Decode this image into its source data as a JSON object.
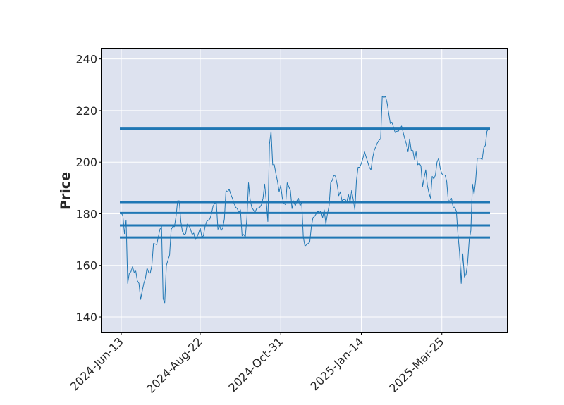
{
  "chart_data": {
    "type": "line",
    "title": "",
    "xlabel": "",
    "ylabel": "Price",
    "ylim": [
      134,
      244
    ],
    "grid": true,
    "colors": {
      "background": "#dde2ef",
      "line": "#1f77b4",
      "grid": "#ffffff",
      "frame": "#000000"
    },
    "x_ticks": [
      "2024-Jun-13",
      "2024-Aug-22",
      "2024-Oct-31",
      "2025-Jan-14",
      "2025-Mar-25"
    ],
    "x_tick_index": [
      0,
      49,
      99,
      149,
      199
    ],
    "y_ticks": [
      140,
      160,
      180,
      200,
      220,
      240
    ],
    "hlines": [
      213,
      184.5,
      180.3,
      175.5,
      170.8
    ],
    "series": [
      {
        "values": [
          180.2,
          179.3,
          172.3,
          177.5,
          153,
          157,
          157.5,
          159.5,
          157.3,
          157.8,
          154,
          153,
          146.8,
          150,
          153,
          155,
          159,
          157.3,
          157,
          160,
          168.5,
          168.3,
          168,
          171,
          174,
          175,
          147,
          145.5,
          160,
          162,
          164,
          174,
          175,
          175,
          179,
          185,
          185,
          177,
          173,
          172,
          172.3,
          176,
          175.5,
          174,
          172,
          172.5,
          170,
          171,
          172.5,
          174.5,
          171,
          171.5,
          175,
          177,
          177.5,
          178,
          180,
          183,
          184,
          184.3,
          174,
          175.5,
          173.5,
          174.5,
          178,
          189,
          188.5,
          189.5,
          187.5,
          186,
          184,
          182.5,
          182,
          180.5,
          181.5,
          171.5,
          172,
          171,
          178.5,
          192,
          185.5,
          182.5,
          181.5,
          180.5,
          182,
          182.2,
          182.5,
          183.5,
          186,
          191.5,
          185,
          177,
          207,
          212,
          199,
          199,
          195.5,
          192.5,
          188.5,
          191,
          186,
          184,
          183.5,
          192,
          190.5,
          189,
          182,
          185,
          183,
          185,
          186,
          183,
          184.5,
          171,
          167.5,
          168,
          168.5,
          169,
          175,
          178.5,
          179,
          180,
          181,
          180.5,
          181,
          178.5,
          181.5,
          176,
          180,
          183,
          192,
          193,
          195,
          194.5,
          191.5,
          187,
          188.5,
          185,
          185.5,
          185.5,
          184.5,
          187.5,
          184.5,
          189,
          185.5,
          181.5,
          193,
          198,
          198,
          199.5,
          201.5,
          204,
          202,
          200,
          198,
          197,
          201.5,
          204.5,
          206,
          207.5,
          208.5,
          209,
          225.5,
          225,
          225.5,
          223,
          219,
          215,
          215.5,
          213.5,
          211.5,
          212,
          212,
          213,
          214,
          211.5,
          209,
          207,
          204,
          209,
          204.5,
          204.5,
          201,
          204,
          199,
          199.5,
          198.5,
          190.5,
          194,
          197,
          191,
          188,
          186,
          194.5,
          193.5,
          195,
          200,
          201.5,
          197.5,
          195.5,
          195,
          195,
          192.5,
          185,
          185,
          186,
          182.5,
          182.5,
          181,
          172,
          165,
          153,
          164.5,
          155.5,
          156.5,
          161,
          170,
          173.5,
          191.5,
          187.5,
          193,
          201.5,
          201.5,
          201.5,
          201,
          205.5,
          206.5,
          212,
          213
        ]
      }
    ]
  }
}
